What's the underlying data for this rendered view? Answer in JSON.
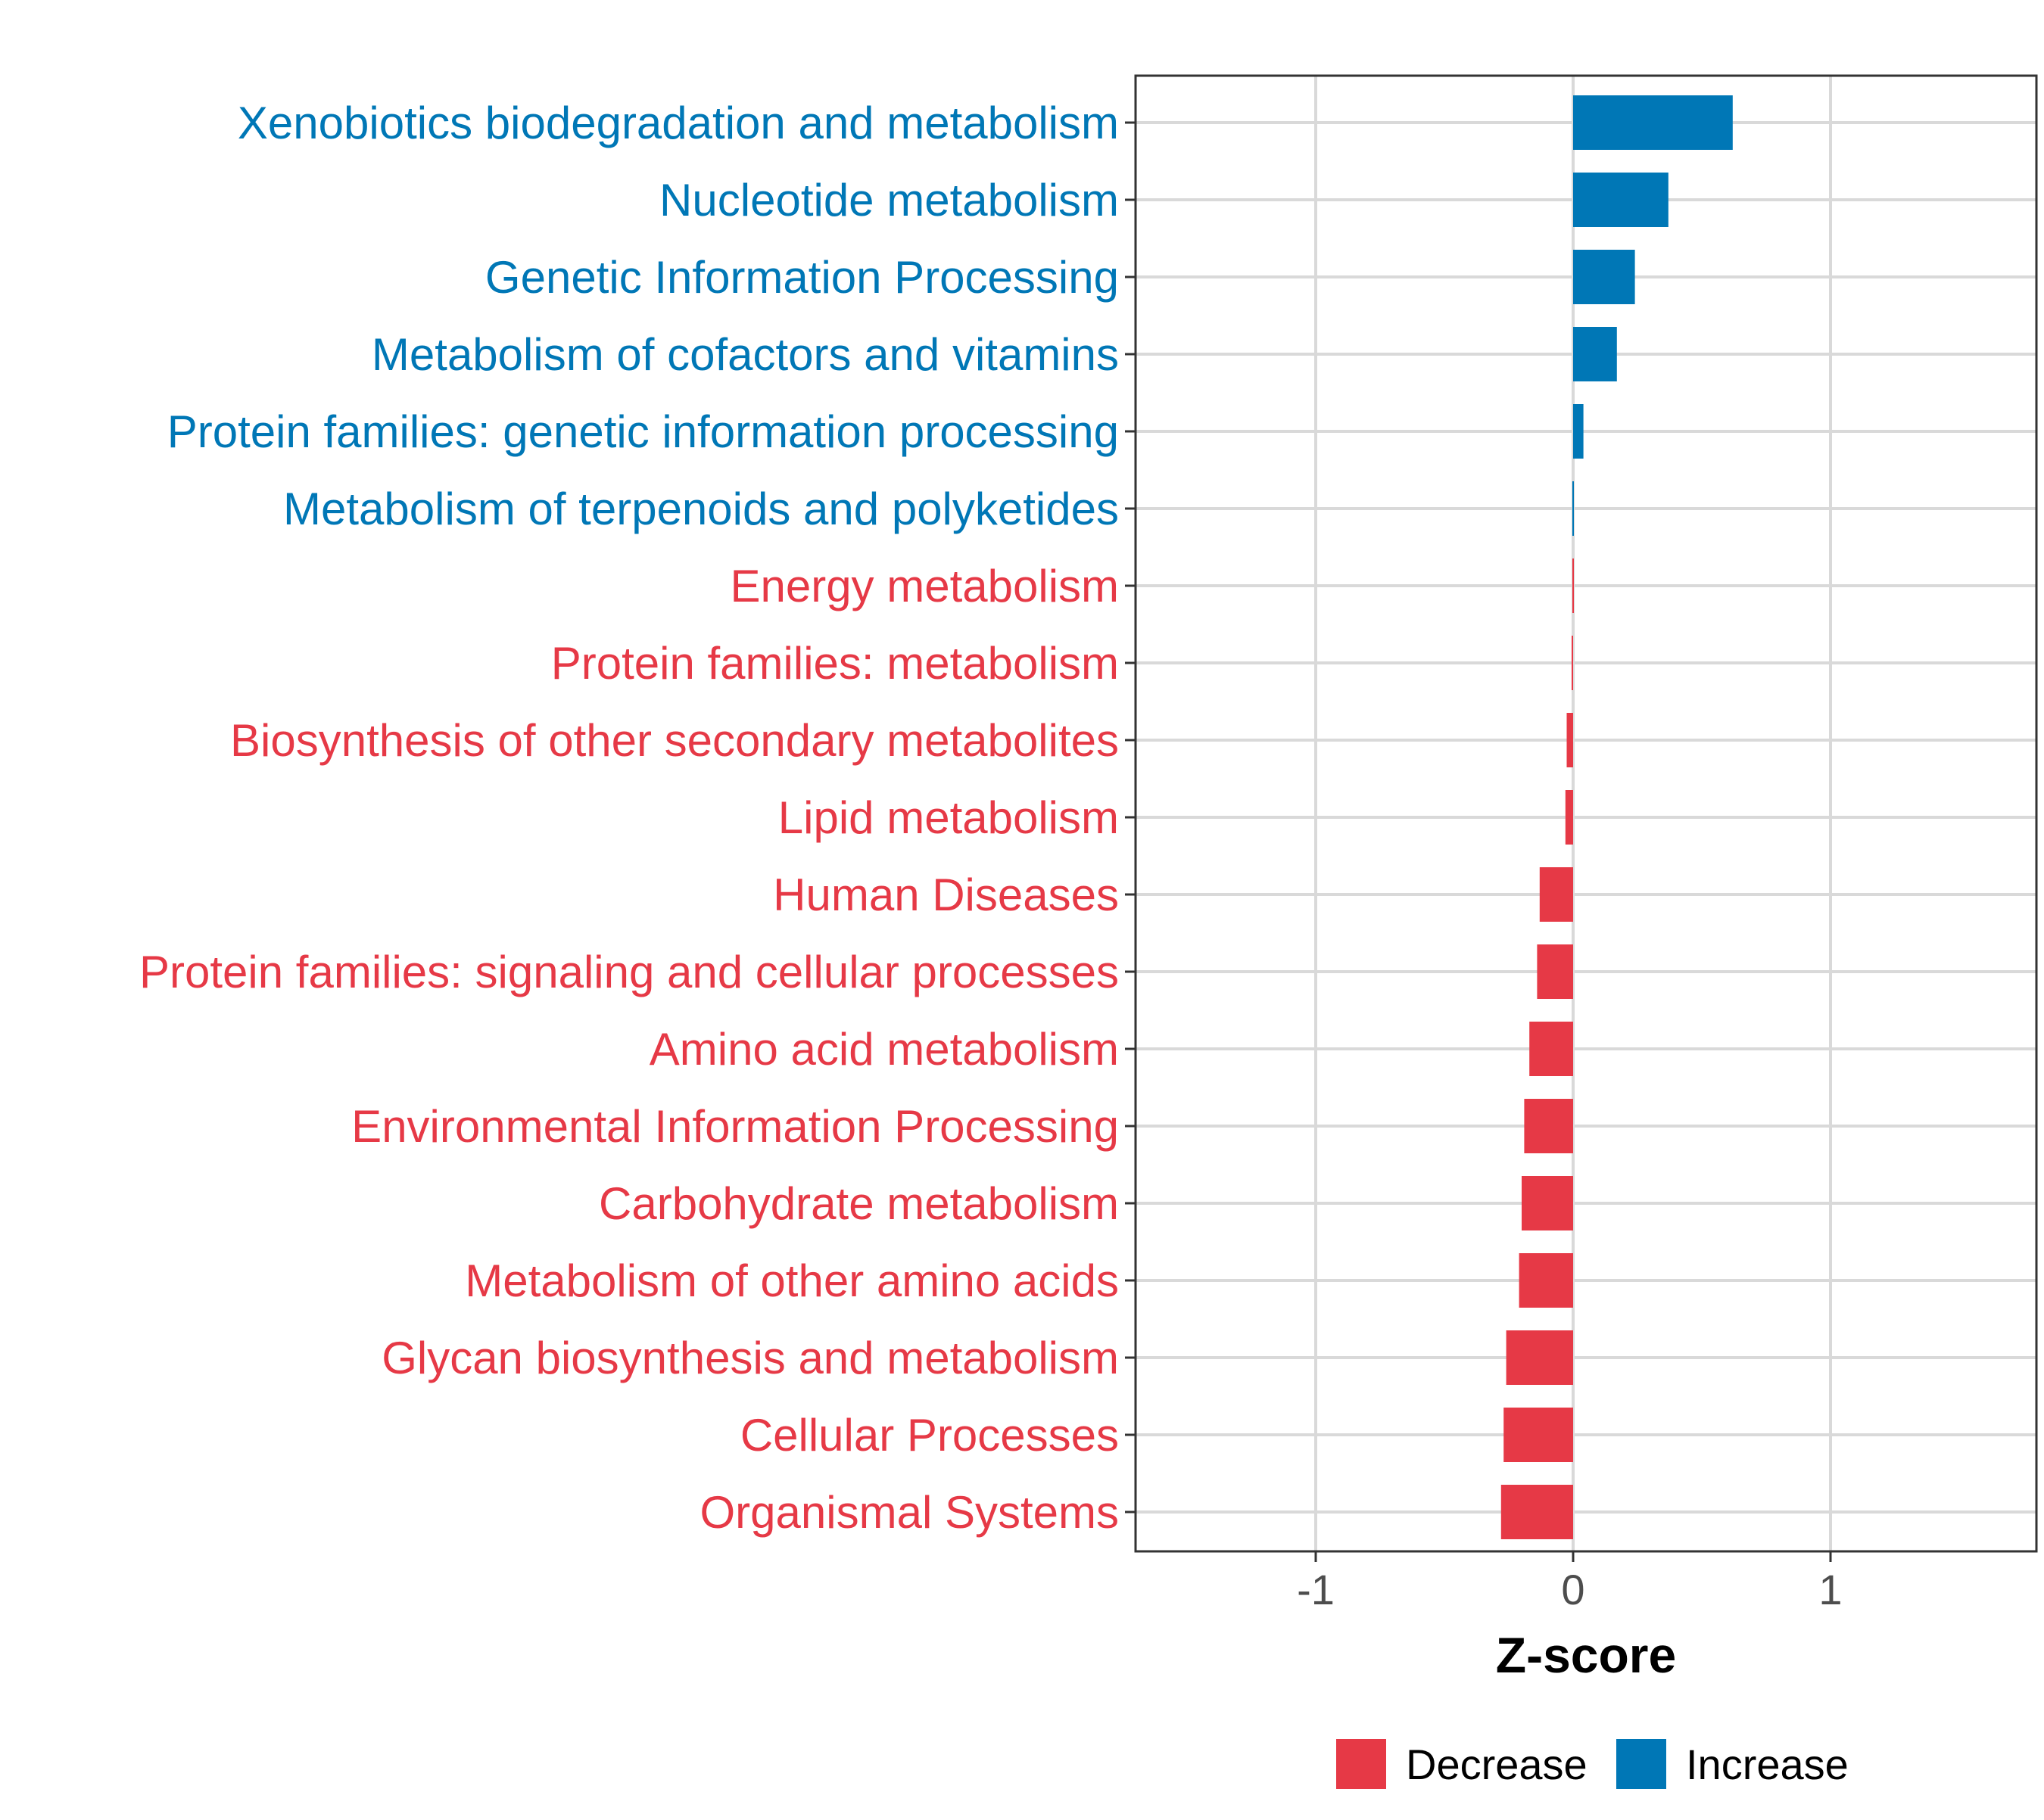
{
  "chart_data": {
    "type": "bar",
    "orientation": "horizontal",
    "title": "",
    "xlabel": "Z-score",
    "ylabel": "",
    "xlim": [
      -1.7,
      1.8
    ],
    "xticks": [
      {
        "value": -1,
        "label": "-1"
      },
      {
        "value": 0,
        "label": "0"
      },
      {
        "value": 1,
        "label": "1"
      }
    ],
    "grid": true,
    "colors": {
      "Decrease": "#E63946",
      "Increase": "#0077B6"
    },
    "categories": [
      "Xenobiotics biodegradation and metabolism",
      "Nucleotide metabolism",
      "Genetic Information Processing",
      "Metabolism of cofactors and vitamins",
      "Protein families: genetic information processing",
      "Metabolism of terpenoids and polyketides",
      "Energy metabolism",
      "Protein families: metabolism",
      "Biosynthesis of other secondary metabolites",
      "Lipid metabolism",
      "Human Diseases",
      "Protein families: signaling and cellular processes",
      "Amino acid metabolism",
      "Environmental Information Processing",
      "Carbohydrate metabolism",
      "Metabolism of other amino acids",
      "Glycan biosynthesis and metabolism",
      "Cellular Processes",
      "Organismal Systems"
    ],
    "values": [
      0.62,
      0.37,
      0.24,
      0.17,
      0.04,
      0.004,
      -0.004,
      -0.006,
      -0.025,
      -0.03,
      -0.13,
      -0.14,
      -0.17,
      -0.19,
      -0.2,
      -0.21,
      -0.26,
      -0.27,
      -0.28
    ],
    "groups": [
      "Increase",
      "Increase",
      "Increase",
      "Increase",
      "Increase",
      "Increase",
      "Decrease",
      "Decrease",
      "Decrease",
      "Decrease",
      "Decrease",
      "Decrease",
      "Decrease",
      "Decrease",
      "Decrease",
      "Decrease",
      "Decrease",
      "Decrease",
      "Decrease"
    ],
    "legend": {
      "position": "bottom",
      "entries": [
        {
          "label": "Decrease",
          "color": "#E63946"
        },
        {
          "label": "Increase",
          "color": "#0077B6"
        }
      ]
    }
  }
}
